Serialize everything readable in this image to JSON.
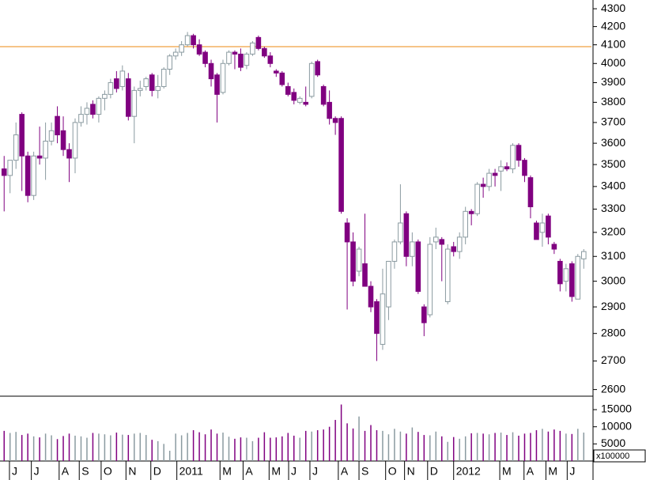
{
  "chart_data": {
    "type": "candlestick",
    "log_scale": true,
    "xlim": [
      -0.7,
      99.3
    ],
    "xticks": [
      {
        "value": 0.9,
        "label": "J"
      },
      {
        "value": 4.6,
        "label": "J"
      },
      {
        "value": 9.3,
        "label": "A"
      },
      {
        "value": 12.7,
        "label": "S"
      },
      {
        "value": 16.4,
        "label": "O"
      },
      {
        "value": 20.6,
        "label": "N"
      },
      {
        "value": 24.8,
        "label": "D"
      },
      {
        "value": 29.2,
        "label": "2011"
      },
      {
        "value": 36.5,
        "label": "M"
      },
      {
        "value": 40.4,
        "label": "A"
      },
      {
        "value": 44.8,
        "label": "M"
      },
      {
        "value": 48.1,
        "label": "J"
      },
      {
        "value": 51.7,
        "label": "J"
      },
      {
        "value": 56.5,
        "label": "A"
      },
      {
        "value": 60,
        "label": "S"
      },
      {
        "value": 64.5,
        "label": "O"
      },
      {
        "value": 67.7,
        "label": "N"
      },
      {
        "value": 71.6,
        "label": "D"
      },
      {
        "value": 76,
        "label": "2012"
      },
      {
        "value": 83.8,
        "label": "M"
      },
      {
        "value": 87.9,
        "label": "A"
      },
      {
        "value": 91.6,
        "label": "M"
      },
      {
        "value": 95.2,
        "label": "J"
      }
    ],
    "ylim": [
      2580,
      4350
    ],
    "yticks": [
      2600,
      2700,
      2800,
      2900,
      3000,
      3100,
      3200,
      3300,
      3400,
      3500,
      3600,
      3700,
      3800,
      3900,
      4000,
      4100,
      4200,
      4300
    ],
    "hline": {
      "value": 4090,
      "color": "#f0a040"
    },
    "up_color": "#ffffff",
    "up_stroke": "#8a9aa0",
    "down_color": "#800080",
    "open": [
      3480,
      3450,
      3520,
      3740,
      3540,
      3360,
      3540,
      3530,
      3610,
      3730,
      3660,
      3570,
      3530,
      3700,
      3740,
      3790,
      3740,
      3820,
      3840,
      3920,
      3880,
      3920,
      3730,
      3860,
      3880,
      3940,
      3860,
      3880,
      3970,
      4040,
      4060,
      4100,
      4150,
      4100,
      4060,
      4000,
      3940,
      3850,
      4000,
      4060,
      4050,
      3990,
      4050,
      4140,
      4080,
      4040,
      3960,
      3950,
      3880,
      3850,
      3800,
      3800,
      3830,
      4010,
      3880,
      3800,
      3720,
      3720,
      3240,
      3160,
      3040,
      3070,
      2980,
      2920,
      2760,
      2900,
      3080,
      3160,
      3280,
      3100,
      3160,
      2900,
      2870,
      3160,
      3170,
      2920,
      3140,
      3120,
      3180,
      3290,
      3280,
      3410,
      3400,
      3460,
      3470,
      3490,
      3480,
      3590,
      3520,
      3440,
      3240,
      3200,
      3270,
      3150,
      3080,
      3000,
      3070,
      2930,
      3090
    ],
    "high": [
      3540,
      3520,
      3700,
      3750,
      3560,
      3560,
      3680,
      3700,
      3700,
      3780,
      3730,
      3600,
      3720,
      3780,
      3800,
      3810,
      3830,
      3860,
      3920,
      3960,
      3990,
      3950,
      3880,
      3910,
      3930,
      3950,
      3940,
      3980,
      4050,
      4080,
      4120,
      4170,
      4160,
      4130,
      4070,
      4020,
      3950,
      4020,
      4070,
      4070,
      4080,
      4060,
      4120,
      4150,
      4090,
      4060,
      3970,
      3960,
      3900,
      3870,
      3830,
      3880,
      4010,
      4020,
      3890,
      3860,
      3730,
      3730,
      3260,
      3200,
      3140,
      3280,
      3000,
      2930,
      3050,
      3080,
      3170,
      3410,
      3290,
      3200,
      3170,
      2910,
      3180,
      3220,
      3180,
      3150,
      3160,
      3200,
      3310,
      3300,
      3420,
      3440,
      3480,
      3480,
      3520,
      3510,
      3600,
      3600,
      3530,
      3450,
      3250,
      3280,
      3280,
      3160,
      3090,
      3070,
      3080,
      3110,
      3130
    ],
    "low": [
      3290,
      3370,
      3480,
      3380,
      3330,
      3340,
      3500,
      3430,
      3590,
      3600,
      3540,
      3420,
      3460,
      3680,
      3690,
      3720,
      3700,
      3760,
      3820,
      3850,
      3860,
      3710,
      3600,
      3830,
      3860,
      3830,
      3820,
      3870,
      3940,
      4020,
      4040,
      4090,
      4080,
      4040,
      3980,
      3880,
      3700,
      3840,
      3990,
      3970,
      3960,
      3970,
      4040,
      4070,
      4030,
      3980,
      3930,
      3880,
      3830,
      3790,
      3790,
      3780,
      3820,
      3930,
      3780,
      3690,
      3640,
      3280,
      2890,
      2980,
      3020,
      2980,
      2880,
      2700,
      2740,
      2850,
      3050,
      3150,
      3060,
      3060,
      2950,
      2790,
      2860,
      3130,
      3000,
      2910,
      3100,
      3090,
      3150,
      3230,
      3270,
      3350,
      3380,
      3400,
      3380,
      3470,
      3460,
      3490,
      3420,
      3260,
      3170,
      3140,
      3150,
      3110,
      2960,
      2960,
      2920,
      2930,
      3050
    ],
    "close": [
      3450,
      3520,
      3640,
      3540,
      3360,
      3540,
      3530,
      3610,
      3660,
      3640,
      3570,
      3530,
      3700,
      3740,
      3770,
      3740,
      3820,
      3840,
      3900,
      3870,
      3960,
      3730,
      3860,
      3870,
      3920,
      3860,
      3880,
      3970,
      4040,
      4060,
      4100,
      4150,
      4100,
      4050,
      4000,
      3920,
      3840,
      4000,
      4060,
      4050,
      3980,
      4050,
      4110,
      4080,
      4040,
      4000,
      3950,
      3890,
      3840,
      3810,
      3820,
      3790,
      4000,
      3940,
      3790,
      3720,
      3700,
      3290,
      3160,
      3000,
      3130,
      2980,
      2900,
      2800,
      2950,
      3080,
      3160,
      3240,
      3100,
      3160,
      2960,
      2840,
      3150,
      3180,
      3150,
      3130,
      3120,
      3180,
      3290,
      3280,
      3410,
      3400,
      3460,
      3450,
      3490,
      3480,
      3590,
      3520,
      3450,
      3310,
      3170,
      3240,
      3180,
      3130,
      2990,
      3050,
      2940,
      3100,
      3120
    ],
    "volume": {
      "ylim": [
        0,
        18700
      ],
      "yticks": [
        5000,
        10000,
        15000
      ],
      "unit_label": "x100000",
      "values": [
        8800,
        8200,
        8500,
        7600,
        8000,
        7200,
        6900,
        8000,
        7500,
        6400,
        7300,
        8000,
        7400,
        7200,
        6800,
        8200,
        8000,
        7800,
        7500,
        8300,
        7700,
        7600,
        8000,
        8200,
        7600,
        6200,
        5800,
        5000,
        3000,
        8000,
        7500,
        8200,
        9000,
        8400,
        7800,
        9200,
        8000,
        8300,
        7100,
        6500,
        6900,
        6800,
        5800,
        6800,
        8400,
        6800,
        6900,
        7200,
        8200,
        7400,
        6800,
        8800,
        8600,
        9000,
        9200,
        10000,
        12000,
        16500,
        11000,
        9500,
        13000,
        8800,
        10500,
        9000,
        8800,
        7800,
        9400,
        8600,
        8000,
        9800,
        8500,
        7600,
        7500,
        8600,
        7200,
        5600,
        7000,
        6500,
        7200,
        8100,
        8200,
        8000,
        7800,
        8200,
        8300,
        7600,
        8400,
        7400,
        8000,
        8200,
        9000,
        9400,
        8600,
        9200,
        8800,
        8000,
        7900,
        9400,
        8300
      ]
    }
  }
}
